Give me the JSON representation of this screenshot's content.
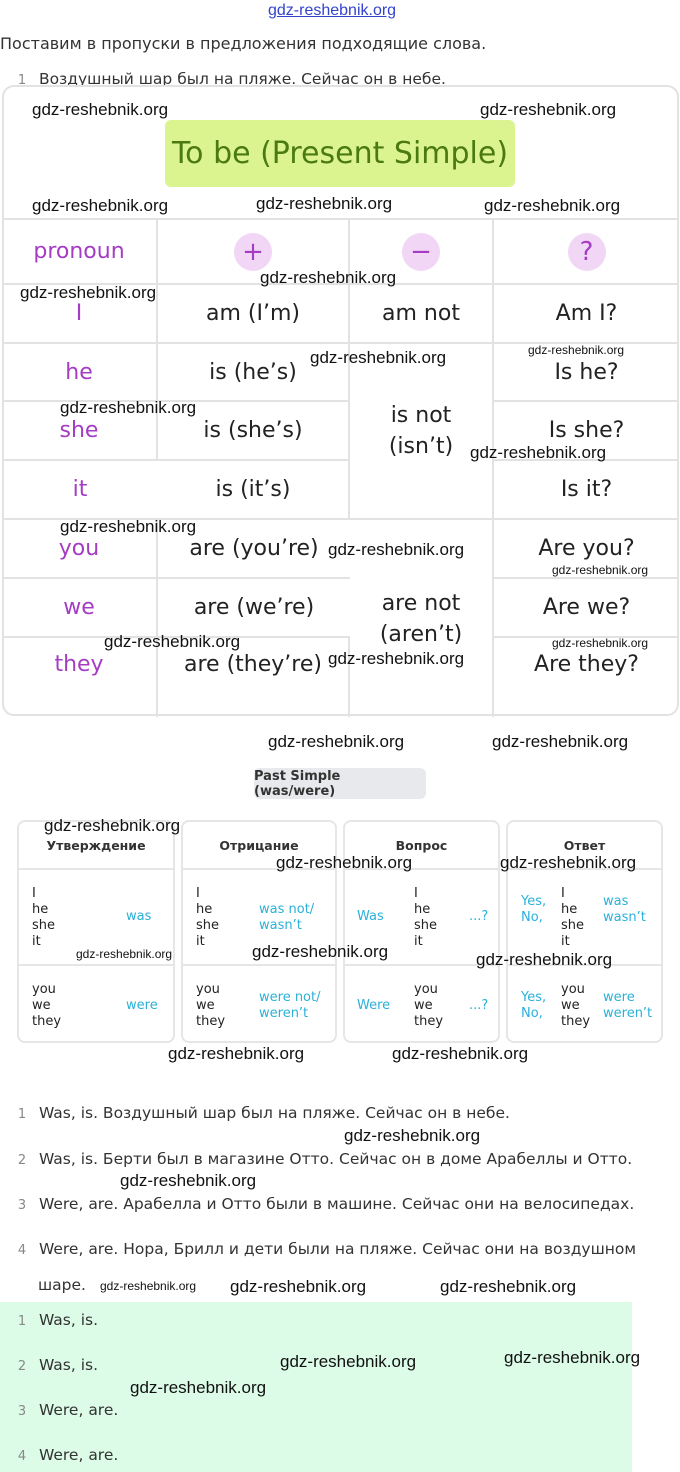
{
  "watermark": "gdz-reshebnik.org",
  "intro": "Поставим в пропуски в предложения подходящие слова.",
  "cut_item": {
    "num": "1",
    "text": "Воздушный шар был на пляже. Сейчас он в небе."
  },
  "present_table": {
    "title": "To be (Present Simple)",
    "headers": {
      "pronoun": "pronoun",
      "plus": "+",
      "minus": "−",
      "question": "?"
    },
    "rows": [
      {
        "pronoun": "I",
        "positive": "am (I’m)",
        "negative": "am not",
        "question": "Am I?"
      },
      {
        "pronoun": "he",
        "positive": "is (he’s)",
        "question": "Is he?"
      },
      {
        "pronoun": "she",
        "positive": "is (she’s)",
        "question": "Is she?"
      },
      {
        "pronoun": "it",
        "positive": "is (it’s)",
        "question": "Is it?"
      },
      {
        "pronoun": "you",
        "positive": "are (you’re)",
        "question": "Are you?"
      },
      {
        "pronoun": "we",
        "positive": "are (we’re)",
        "question": "Are we?"
      },
      {
        "pronoun": "they",
        "positive": "are (they’re)",
        "question": "Are they?"
      }
    ],
    "neg_is": "is not (isn’t)",
    "neg_are": "are not (aren’t)",
    "colors": {
      "pronoun": "#a43cc4",
      "title_bg": "#dcf48f",
      "title_text": "#4a7a10"
    }
  },
  "past_table": {
    "button": "Past Simple (was/were)",
    "headers": [
      "Утверждение",
      "Отрицание",
      "Вопрос",
      "Ответ"
    ],
    "sg_pronouns": [
      "I",
      "he",
      "she",
      "it"
    ],
    "pl_pronouns": [
      "you",
      "we",
      "they"
    ],
    "aff": {
      "sg": "was",
      "pl": "were"
    },
    "neg": {
      "sg": [
        "was not/",
        "wasn’t"
      ],
      "pl": [
        "were not/",
        "weren’t"
      ]
    },
    "q": {
      "sg": "Was",
      "pl": "Were",
      "tail": "...?"
    },
    "ans": {
      "yes": "Yes,",
      "no": "No,",
      "sg": [
        "was",
        "wasn’t"
      ],
      "pl": [
        "were",
        "weren’t"
      ]
    },
    "accent": "#2bb0d8"
  },
  "answers": [
    {
      "num": "1",
      "text": "Was, is. Воздушный шар был на пляже. Сейчас он в небе."
    },
    {
      "num": "2",
      "text": "Was, is. Берти был в магазине Отто. Сейчас он в доме Арабеллы и Отто."
    },
    {
      "num": "3",
      "text": "Were, are. Арабелла и Отто были в машине. Сейчас они на велосипедах."
    },
    {
      "num": "4",
      "text": "Were, are. Нора, Брилл и дети были на пляже. Сейчас они на воздушном",
      "text2": "шаре."
    }
  ],
  "short_answers": [
    {
      "num": "1",
      "text": "Was, is."
    },
    {
      "num": "2",
      "text": "Was, is."
    },
    {
      "num": "3",
      "text": "Were, are."
    },
    {
      "num": "4",
      "text": "Were, are."
    }
  ]
}
